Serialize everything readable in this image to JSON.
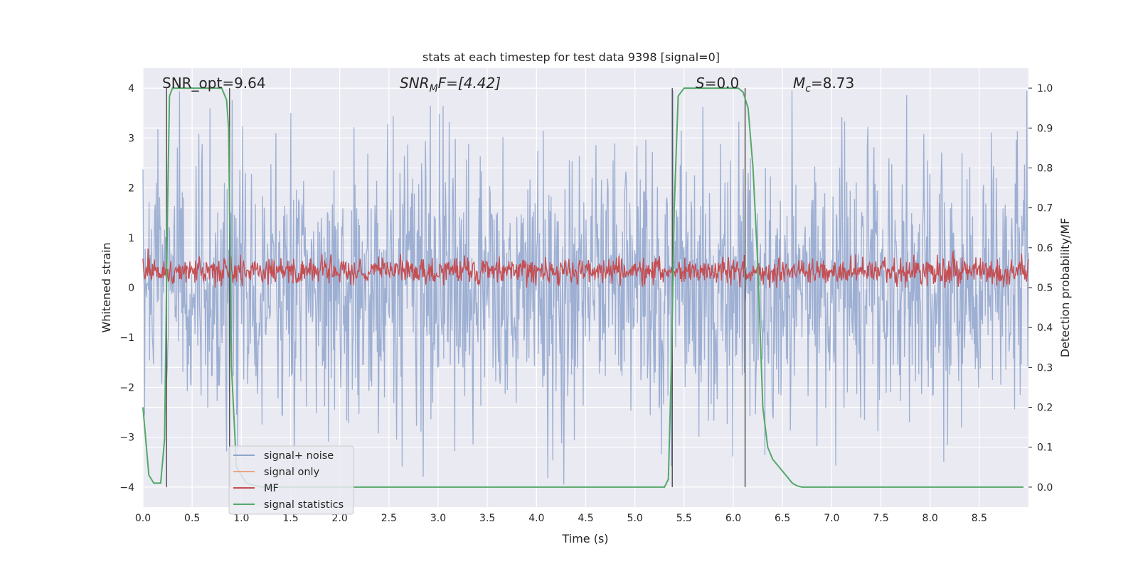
{
  "chart_data": {
    "type": "line",
    "title": "stats at each timestep for test data 9398 [signal=0]",
    "xlabel": "Time (s)",
    "ylabel_left": "Whitened strain",
    "ylabel_right": "Detection probability/MF",
    "xlim": [
      0.0,
      9.0
    ],
    "ylim_left": [
      -4.4,
      4.4
    ],
    "ylim_right": [
      -0.05,
      1.05
    ],
    "x_ticks": [
      "0.0",
      "0.5",
      "1.0",
      "1.5",
      "2.0",
      "2.5",
      "3.0",
      "3.5",
      "4.0",
      "4.5",
      "5.0",
      "5.5",
      "6.0",
      "6.5",
      "7.0",
      "7.5",
      "8.0",
      "8.5"
    ],
    "y_ticks_left": [
      "−4",
      "−3",
      "−2",
      "−1",
      "0",
      "1",
      "2",
      "3",
      "4"
    ],
    "y_ticks_right": [
      "0.0",
      "0.1",
      "0.2",
      "0.3",
      "0.4",
      "0.5",
      "0.6",
      "0.7",
      "0.8",
      "0.9",
      "1.0"
    ],
    "grid": true,
    "colors": {
      "noise": "#8fa5cc",
      "signal_only": "#e8a585",
      "mf": "#c44e52",
      "stats": "#55a868",
      "vline": "#555555",
      "bg": "#eaeaf2"
    },
    "annotations": {
      "snr_opt": "SNR_opt=9.64",
      "snr_mf_label": "SNR",
      "snr_mf_sub": "M",
      "snr_mf_rest": "F=[4.42]",
      "s_label": "S",
      "s_value": "=0.0",
      "mc_label": "M",
      "mc_sub": "c",
      "mc_value": "=8.73"
    },
    "vlines": [
      0.24,
      0.88,
      5.38,
      6.12
    ],
    "legend": {
      "position": "bottom-left",
      "entries": [
        "signal+ noise",
        "signal only",
        "MF",
        "signal statistics"
      ]
    },
    "series": [
      {
        "name": "signal+ noise",
        "axis": "left",
        "description": "whitened noise, approx. range -4 to 4"
      },
      {
        "name": "signal only",
        "axis": "left",
        "values": []
      },
      {
        "name": "MF",
        "axis": "left",
        "description": "matched-filter output, approx. 0 to 1"
      },
      {
        "name": "signal statistics",
        "axis": "right",
        "x": [
          0.0,
          0.06,
          0.11,
          0.18,
          0.22,
          0.25,
          0.27,
          0.3,
          0.35,
          0.6,
          0.8,
          0.85,
          0.87,
          0.9,
          0.95,
          1.05,
          1.2,
          5.3,
          5.34,
          5.37,
          5.4,
          5.44,
          5.5,
          6.0,
          6.05,
          6.1,
          6.15,
          6.2,
          6.25,
          6.3,
          6.35,
          6.4,
          6.5,
          6.6,
          6.65,
          6.7,
          8.95
        ],
        "y": [
          0.2,
          0.03,
          0.01,
          0.01,
          0.12,
          0.7,
          0.98,
          1.0,
          1.0,
          1.0,
          1.0,
          0.97,
          0.9,
          0.3,
          0.05,
          0.01,
          0.0,
          0.0,
          0.02,
          0.3,
          0.7,
          0.98,
          1.0,
          1.0,
          1.0,
          0.99,
          0.95,
          0.8,
          0.55,
          0.2,
          0.1,
          0.07,
          0.04,
          0.01,
          0.003,
          0.0,
          0.0
        ]
      }
    ]
  }
}
